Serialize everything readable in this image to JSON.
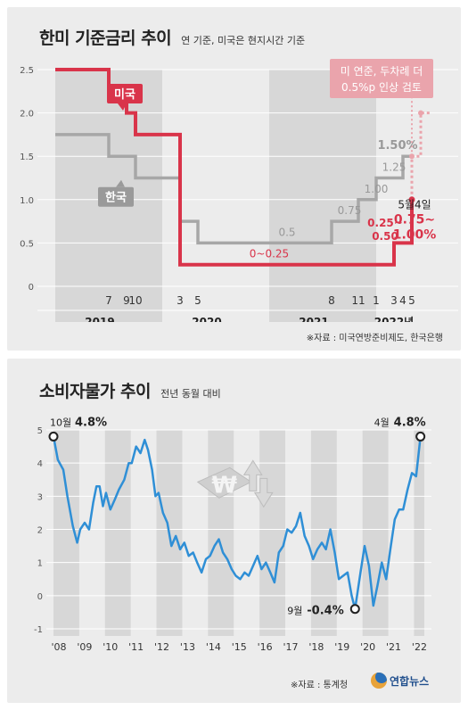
{
  "panel1": {
    "title": "한미 기준금리 추이",
    "subtitle": "연 기준, 미국은 현지시간 기준",
    "source": "※자료 : 미국연방준비제도, 한국은행"
  },
  "panel2": {
    "title": "소비자물가 추이",
    "subtitle": "전년 동월 대비",
    "source": "※자료 : 통계청",
    "logo_text": "연합뉴스"
  },
  "colors": {
    "us": "#d9344a",
    "korea": "#a7a7a7",
    "cpi": "#2f8fd6",
    "band": "#d7d7d7"
  },
  "chart_data": [
    {
      "type": "line",
      "title": "한미 기준금리 추이",
      "subtitle": "연 기준, 미국은 현지시간 기준",
      "x_unit": "months",
      "ylim": [
        0,
        2.5
      ],
      "yticks": [
        "0",
        "0.5",
        "1.0",
        "1.5",
        "2.0",
        "2.5"
      ],
      "xlim": [
        "2019-01",
        "2022-05"
      ],
      "x_tick_labels": [
        {
          "label": "7",
          "x": "2019-07"
        },
        {
          "label": "9",
          "x": "2019-09"
        },
        {
          "label": "10",
          "x": "2019-10"
        },
        {
          "label": "3",
          "x": "2020-03"
        },
        {
          "label": "5",
          "x": "2020-05"
        },
        {
          "label": "8",
          "x": "2021-08"
        },
        {
          "label": "11",
          "x": "2021-11"
        },
        {
          "label": "1",
          "x": "2022-01"
        },
        {
          "label": "3",
          "x": "2022-03"
        },
        {
          "label": "4",
          "x": "2022-04"
        },
        {
          "label": "5",
          "x": "2022-05"
        }
      ],
      "year_labels": [
        {
          "label": "2019",
          "x": "2019-06"
        },
        {
          "label": "2020",
          "x": "2020-06"
        },
        {
          "label": "2021",
          "x": "2021-06"
        },
        {
          "label": "2022년",
          "x": "2022-03"
        }
      ],
      "shaded_years": [
        [
          "2019-01",
          "2020-01"
        ],
        [
          "2021-01",
          "2022-01"
        ]
      ],
      "series": [
        {
          "name": "미국",
          "step": true,
          "points": [
            [
              "2019-01",
              2.5
            ],
            [
              "2019-07",
              2.25
            ],
            [
              "2019-09",
              2.0
            ],
            [
              "2019-10",
              1.75
            ],
            [
              "2020-03",
              0.25
            ],
            [
              "2022-03",
              0.5
            ],
            [
              "2022-05",
              1.0
            ]
          ],
          "projection": [
            [
              "2022-05",
              1.5
            ],
            [
              "2022-06",
              2.0
            ],
            [
              "2022-07",
              2.0
            ]
          ]
        },
        {
          "name": "한국",
          "step": true,
          "points": [
            [
              "2019-01",
              1.75
            ],
            [
              "2019-07",
              1.5
            ],
            [
              "2019-10",
              1.25
            ],
            [
              "2020-03",
              0.75
            ],
            [
              "2020-05",
              0.5
            ],
            [
              "2021-08",
              0.75
            ],
            [
              "2021-11",
              1.0
            ],
            [
              "2022-01",
              1.25
            ],
            [
              "2022-04",
              1.5
            ],
            [
              "2022-05",
              1.5
            ]
          ]
        }
      ],
      "annotations": {
        "us_label": "미국",
        "korea_label": "한국",
        "projection_note_line1": "미 연준, 두차례 더",
        "projection_note_line2": "0.5%p 인상 검토",
        "kr_05": "0.5",
        "kr_075": "0.75",
        "kr_100": "1.00",
        "kr_125": "1.25",
        "kr_150": "1.50%",
        "us_zero": "0~0.25",
        "us_mar_line1": "0.25~",
        "us_mar_line2": "0.50",
        "may4_date": "5월4일",
        "may4_line1": "0.75~",
        "may4_line2": "1.00%"
      }
    },
    {
      "type": "line",
      "title": "소비자물가 추이",
      "subtitle": "전년 동월 대비",
      "x_unit": "year",
      "xlim": [
        2008.0,
        2022.4
      ],
      "ylim": [
        -1,
        5
      ],
      "yticks": [
        "-1",
        "0",
        "1",
        "2",
        "3",
        "4",
        "5"
      ],
      "x_tick_labels": [
        "'08",
        "'09",
        "'10",
        "'11",
        "'12",
        "'13",
        "'14",
        "'15",
        "'16",
        "'17",
        "'18",
        "'19",
        "'20",
        "'21",
        "'22"
      ],
      "series": [
        {
          "name": "",
          "x": [
            2008.0,
            2008.17,
            2008.38,
            2008.54,
            2008.75,
            2008.92,
            2009.04,
            2009.21,
            2009.38,
            2009.54,
            2009.67,
            2009.79,
            2009.92,
            2010.04,
            2010.21,
            2010.38,
            2010.54,
            2010.75,
            2010.92,
            2011.04,
            2011.21,
            2011.38,
            2011.54,
            2011.67,
            2011.83,
            2011.96,
            2012.08,
            2012.25,
            2012.42,
            2012.58,
            2012.75,
            2012.92,
            2013.08,
            2013.25,
            2013.42,
            2013.58,
            2013.75,
            2013.92,
            2014.08,
            2014.25,
            2014.42,
            2014.58,
            2014.75,
            2014.92,
            2015.08,
            2015.25,
            2015.42,
            2015.58,
            2015.75,
            2015.92,
            2016.08,
            2016.25,
            2016.42,
            2016.58,
            2016.75,
            2016.92,
            2017.08,
            2017.25,
            2017.42,
            2017.58,
            2017.75,
            2017.92,
            2018.08,
            2018.25,
            2018.42,
            2018.58,
            2018.75,
            2018.92,
            2019.08,
            2019.25,
            2019.42,
            2019.58,
            2019.71,
            2019.92,
            2020.08,
            2020.25,
            2020.42,
            2020.58,
            2020.75,
            2020.92,
            2021.08,
            2021.25,
            2021.42,
            2021.58,
            2021.75,
            2021.92,
            2022.08,
            2022.25
          ],
          "values": [
            4.8,
            4.1,
            3.8,
            3.0,
            2.1,
            1.6,
            2.0,
            2.2,
            2.0,
            2.8,
            3.3,
            3.3,
            2.7,
            3.1,
            2.6,
            2.9,
            3.2,
            3.5,
            4.0,
            4.0,
            4.5,
            4.3,
            4.7,
            4.4,
            3.8,
            3.0,
            3.1,
            2.5,
            2.2,
            1.5,
            1.8,
            1.4,
            1.6,
            1.2,
            1.3,
            1.0,
            0.7,
            1.1,
            1.2,
            1.5,
            1.7,
            1.3,
            1.1,
            0.8,
            0.6,
            0.5,
            0.7,
            0.6,
            0.9,
            1.2,
            0.8,
            1.0,
            0.7,
            0.4,
            1.3,
            1.5,
            2.0,
            1.9,
            2.1,
            2.5,
            1.8,
            1.5,
            1.1,
            1.4,
            1.6,
            1.4,
            2.0,
            1.3,
            0.5,
            0.6,
            0.7,
            0.0,
            -0.4,
            0.7,
            1.5,
            0.9,
            -0.3,
            0.3,
            1.0,
            0.5,
            1.4,
            2.3,
            2.6,
            2.6,
            3.2,
            3.7,
            3.6,
            4.8
          ]
        }
      ],
      "annotations": {
        "start_month": "10월",
        "start_value": "4.8%",
        "min_month": "9월",
        "min_value": "-0.4%",
        "end_month": "4월",
        "end_value": "4.8%"
      }
    }
  ]
}
